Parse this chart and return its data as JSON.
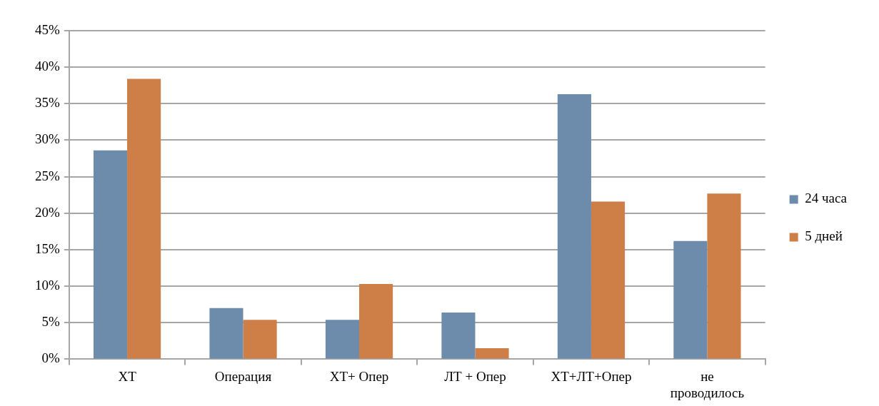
{
  "chart_data": {
    "type": "bar",
    "categories": [
      "ХТ",
      "Операция",
      "ХТ+ Опер",
      "ЛТ + Опер",
      "ХТ+ЛТ+Опер",
      "не проводилось"
    ],
    "series": [
      {
        "name": "24 часа",
        "color": "#6d8cab",
        "values": [
          28.6,
          7.0,
          5.4,
          6.4,
          36.3,
          16.2
        ]
      },
      {
        "name": "5 дней",
        "color": "#cd7f47",
        "values": [
          38.4,
          5.4,
          10.3,
          1.5,
          21.6,
          22.7
        ]
      }
    ],
    "ylim": [
      0,
      45
    ],
    "yticks": [
      {
        "value": 0,
        "label": "0%"
      },
      {
        "value": 5,
        "label": "5%"
      },
      {
        "value": 10,
        "label": "10%"
      },
      {
        "value": 15,
        "label": "15%"
      },
      {
        "value": 20,
        "label": "20%"
      },
      {
        "value": 25,
        "label": "25%"
      },
      {
        "value": 30,
        "label": "30%"
      },
      {
        "value": 35,
        "label": "35%"
      },
      {
        "value": 40,
        "label": "40%"
      },
      {
        "value": 45,
        "label": "45%"
      }
    ],
    "grid": "y",
    "legend": "right"
  }
}
